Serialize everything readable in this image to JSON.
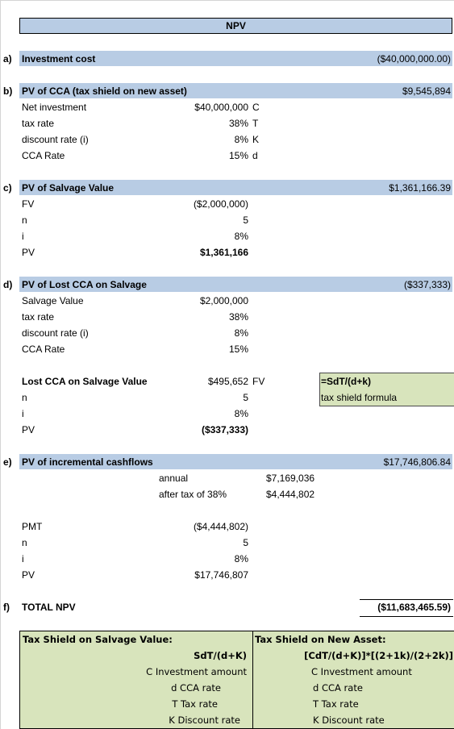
{
  "title": "NPV",
  "sections": {
    "a": {
      "letter": "a)",
      "heading": "Investment cost",
      "total": "($40,000,000.00)"
    },
    "b": {
      "letter": "b)",
      "heading": "PV of CCA (tax shield on new asset)",
      "total": "$9,545,894",
      "rows": [
        {
          "label": "Net investment",
          "value": "$40,000,000",
          "code": "C"
        },
        {
          "label": "tax rate",
          "value": "38%",
          "code": "T"
        },
        {
          "label": "discount rate (i)",
          "value": "8%",
          "code": "K"
        },
        {
          "label": "CCA Rate",
          "value": "15%",
          "code": "d"
        }
      ]
    },
    "c": {
      "letter": "c)",
      "heading": "PV of Salvage Value",
      "total": "$1,361,166.39",
      "rows": [
        {
          "label": "FV",
          "value": "($2,000,000)"
        },
        {
          "label": "n",
          "value": "5"
        },
        {
          "label": "i",
          "value": "8%"
        },
        {
          "label": "PV",
          "value": "$1,361,166"
        }
      ]
    },
    "d": {
      "letter": "d)",
      "heading": "PV of Lost CCA on Salvage",
      "total": "($337,333)",
      "rows": [
        {
          "label": "Salvage Value",
          "value": "$2,000,000"
        },
        {
          "label": "tax rate",
          "value": "38%"
        },
        {
          "label": "discount rate (i)",
          "value": "8%"
        },
        {
          "label": "CCA Rate",
          "value": "15%"
        }
      ],
      "lost_label": "Lost CCA on Salvage Value",
      "lost_value": "$495,652",
      "lost_code": "FV",
      "rows2": [
        {
          "label": "n",
          "value": "5"
        },
        {
          "label": "i",
          "value": "8%"
        },
        {
          "label": "PV",
          "value": "($337,333)"
        }
      ],
      "note_formula": "=SdT/(d+k)",
      "note_desc": "tax shield formula"
    },
    "e": {
      "letter": "e)",
      "heading": "PV of incremental cashflows",
      "total": "$17,746,806.84",
      "annual_label": "annual",
      "annual_value": "$7,169,036",
      "aftertax_label": "after tax of 38%",
      "aftertax_value": "$4,444,802",
      "rows": [
        {
          "label": "PMT",
          "value": "($4,444,802)"
        },
        {
          "label": "n",
          "value": "5"
        },
        {
          "label": "i",
          "value": "8%"
        },
        {
          "label": "PV",
          "value": "$17,746,807"
        }
      ]
    },
    "f": {
      "letter": "f)",
      "heading": "TOTAL NPV",
      "total": "($11,683,465.59)"
    }
  },
  "legend": {
    "left_title": "Tax Shield on Salvage Value:",
    "left_formula": "SdT/(d+K)",
    "left_items": [
      "C Investment amount",
      "d CCA rate",
      "T Tax rate",
      "K Discount rate"
    ],
    "right_title": "Tax Shield on New Asset:",
    "right_formula": "[CdT/(d+K)]*[(2+1k)/(2+2k)]",
    "right_items": [
      "C Investment amount",
      "d CCA rate",
      "T Tax rate",
      "K Discount rate"
    ]
  }
}
